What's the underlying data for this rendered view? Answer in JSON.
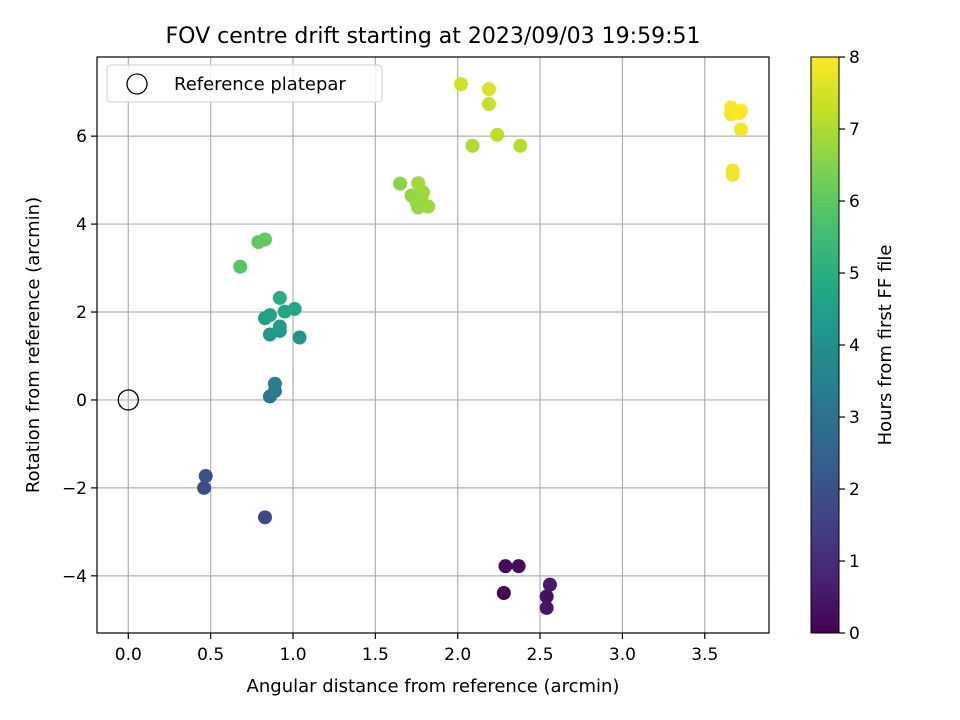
{
  "chart_data": {
    "type": "scatter",
    "title": "FOV centre drift starting at 2023/09/03 19:59:51",
    "xlabel": "Angular distance from reference (arcmin)",
    "ylabel": "Rotation from reference (arcmin)",
    "xlim": [
      -0.19,
      3.89
    ],
    "ylim": [
      -5.3,
      7.8
    ],
    "xticks": [
      "0.0",
      "0.5",
      "1.0",
      "1.5",
      "2.0",
      "2.5",
      "3.0",
      "3.5"
    ],
    "xtick_values": [
      0,
      0.5,
      1.0,
      1.5,
      2.0,
      2.5,
      3.0,
      3.5
    ],
    "yticks": [
      "−4",
      "−2",
      "0",
      "2",
      "4",
      "6"
    ],
    "ytick_values": [
      -4,
      -2,
      0,
      2,
      4,
      6
    ],
    "grid": true,
    "legend": {
      "placement": "top-left",
      "entries": [
        "Reference platepar"
      ]
    },
    "reference_point": {
      "x": 0,
      "y": 0,
      "label": "Reference platepar"
    },
    "colorbar": {
      "label": "Hours from first FF file",
      "range": [
        0,
        8
      ],
      "ticks": [
        "0",
        "1",
        "2",
        "3",
        "4",
        "5",
        "6",
        "7",
        "8"
      ],
      "tick_values": [
        0,
        1,
        2,
        3,
        4,
        5,
        6,
        7,
        8
      ],
      "colormap": "viridis"
    },
    "points": [
      {
        "x": 2.28,
        "y": -4.39,
        "h": 0.05
      },
      {
        "x": 2.29,
        "y": -3.78,
        "h": 0.15
      },
      {
        "x": 2.37,
        "y": -3.78,
        "h": 0.25
      },
      {
        "x": 2.54,
        "y": -4.47,
        "h": 0.35
      },
      {
        "x": 2.54,
        "y": -4.73,
        "h": 0.45
      },
      {
        "x": 2.56,
        "y": -4.2,
        "h": 0.55
      },
      {
        "x": 0.83,
        "y": -2.67,
        "h": 1.7
      },
      {
        "x": 0.46,
        "y": -2.0,
        "h": 1.85
      },
      {
        "x": 0.47,
        "y": -1.73,
        "h": 2.0
      },
      {
        "x": 0.86,
        "y": 0.08,
        "h": 3.1
      },
      {
        "x": 0.89,
        "y": 0.2,
        "h": 3.25
      },
      {
        "x": 0.89,
        "y": 0.37,
        "h": 3.4
      },
      {
        "x": 1.04,
        "y": 1.42,
        "h": 4.1
      },
      {
        "x": 0.86,
        "y": 1.49,
        "h": 4.2
      },
      {
        "x": 0.92,
        "y": 1.57,
        "h": 4.3
      },
      {
        "x": 0.92,
        "y": 1.67,
        "h": 4.4
      },
      {
        "x": 0.83,
        "y": 1.86,
        "h": 4.5
      },
      {
        "x": 0.86,
        "y": 1.93,
        "h": 4.6
      },
      {
        "x": 0.95,
        "y": 2.01,
        "h": 4.7
      },
      {
        "x": 1.01,
        "y": 2.07,
        "h": 4.8
      },
      {
        "x": 0.92,
        "y": 2.32,
        "h": 4.95
      },
      {
        "x": 0.68,
        "y": 3.03,
        "h": 5.85
      },
      {
        "x": 0.79,
        "y": 3.59,
        "h": 6.0
      },
      {
        "x": 0.83,
        "y": 3.65,
        "h": 6.05
      },
      {
        "x": 1.65,
        "y": 4.92,
        "h": 6.6
      },
      {
        "x": 1.72,
        "y": 4.65,
        "h": 6.65
      },
      {
        "x": 1.75,
        "y": 4.5,
        "h": 6.7
      },
      {
        "x": 1.76,
        "y": 4.38,
        "h": 6.72
      },
      {
        "x": 1.78,
        "y": 4.58,
        "h": 6.75
      },
      {
        "x": 1.79,
        "y": 4.72,
        "h": 6.78
      },
      {
        "x": 1.82,
        "y": 4.4,
        "h": 6.8
      },
      {
        "x": 1.76,
        "y": 4.93,
        "h": 6.85
      },
      {
        "x": 2.09,
        "y": 5.78,
        "h": 7.05
      },
      {
        "x": 2.38,
        "y": 5.78,
        "h": 7.1
      },
      {
        "x": 2.24,
        "y": 6.03,
        "h": 7.2
      },
      {
        "x": 2.19,
        "y": 6.73,
        "h": 7.35
      },
      {
        "x": 2.02,
        "y": 7.18,
        "h": 7.45
      },
      {
        "x": 2.19,
        "y": 7.07,
        "h": 7.55
      },
      {
        "x": 3.67,
        "y": 5.12,
        "h": 7.8
      },
      {
        "x": 3.67,
        "y": 5.22,
        "h": 7.85
      },
      {
        "x": 3.72,
        "y": 6.15,
        "h": 7.9
      },
      {
        "x": 3.66,
        "y": 6.5,
        "h": 7.93
      },
      {
        "x": 3.66,
        "y": 6.65,
        "h": 7.95
      },
      {
        "x": 3.72,
        "y": 6.58,
        "h": 7.97
      },
      {
        "x": 3.71,
        "y": 6.52,
        "h": 8.0
      }
    ]
  }
}
